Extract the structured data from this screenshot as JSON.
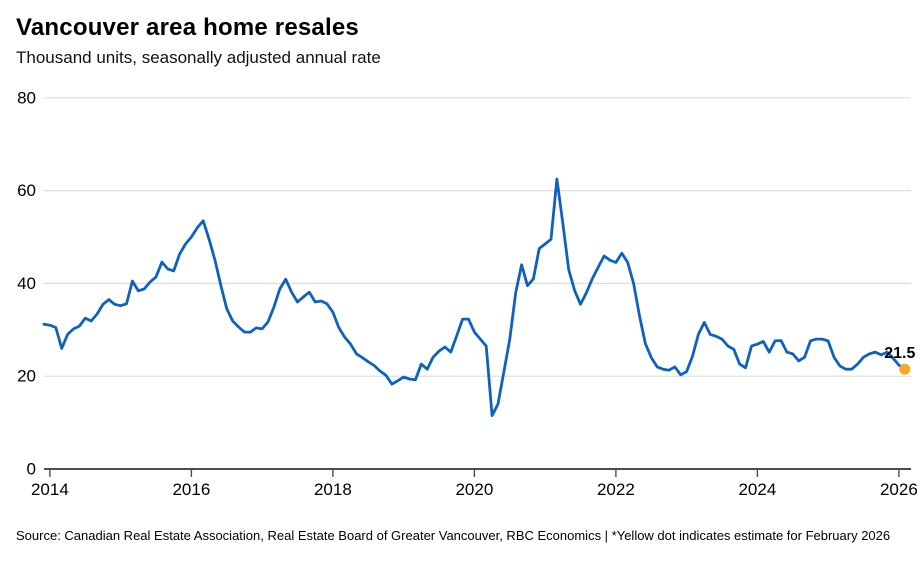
{
  "header": {
    "title": "Vancouver area home resales",
    "subtitle": "Thousand units, seasonally adjusted annual rate"
  },
  "footer": {
    "source": "Source: Canadian Real Estate Association, Real Estate Board of Greater Vancouver, RBC Economics | *Yellow dot indicates estimate for February 2026"
  },
  "colors": {
    "line": "#0d62bd",
    "dot": "#f7a824",
    "grid": "#dcdcdc",
    "axis": "#4d4d4d",
    "tick_text": "#000000"
  },
  "chart_data": {
    "type": "line",
    "title": "Vancouver area home resales",
    "subtitle": "Thousand units, seasonally adjusted annual rate",
    "xlabel": "",
    "ylabel": "Thousand units, seasonally adjusted annual rate",
    "ylim": [
      0,
      80
    ],
    "yticks": [
      0,
      20,
      40,
      60,
      80
    ],
    "xticks": [
      2014,
      2016,
      2018,
      2020,
      2022,
      2024,
      2026
    ],
    "grid": "horizontal",
    "legend": "none",
    "series": [
      {
        "name": "Vancouver area home resales (monthly, SAAR, thousands)",
        "start": "2013-12",
        "frequency": "monthly",
        "values": [
          31.2,
          31.0,
          30.5,
          26.0,
          29.0,
          30.2,
          30.8,
          32.5,
          31.9,
          33.4,
          35.5,
          36.5,
          35.5,
          35.2,
          35.6,
          40.5,
          38.4,
          38.8,
          40.3,
          41.4,
          44.6,
          43.1,
          42.7,
          46.3,
          48.5,
          50.0,
          52.0,
          53.5,
          49.5,
          45.0,
          39.5,
          34.5,
          31.9,
          30.6,
          29.5,
          29.5,
          30.4,
          30.2,
          31.7,
          34.9,
          38.8,
          40.9,
          38.1,
          36.0,
          37.1,
          38.1,
          36.0,
          36.2,
          35.6,
          33.8,
          30.5,
          28.4,
          26.9,
          24.8,
          24.0,
          23.1,
          22.3,
          21.1,
          20.2,
          18.3,
          19.0,
          19.8,
          19.4,
          19.2,
          22.6,
          21.5,
          24.1,
          25.4,
          26.3,
          25.2,
          28.7,
          32.3,
          32.3,
          29.5,
          28.0,
          26.5,
          11.5,
          14.0,
          21.0,
          28.0,
          38.0,
          44.0,
          39.5,
          41.0,
          47.5,
          48.5,
          49.5,
          62.5,
          53.0,
          43.0,
          38.5,
          35.5,
          38.0,
          41.0,
          43.5,
          45.9,
          45.0,
          44.5,
          46.5,
          44.5,
          40.0,
          33.0,
          27.0,
          24.0,
          22.0,
          21.5,
          21.3,
          22.0,
          20.3,
          21.0,
          24.3,
          29.0,
          31.6,
          29.0,
          28.6,
          28.0,
          26.5,
          25.8,
          22.6,
          21.8,
          26.5,
          26.9,
          27.5,
          25.2,
          27.6,
          27.7,
          25.2,
          24.8,
          23.3,
          24.1,
          27.6,
          28.0,
          28.0,
          27.6,
          24.1,
          22.2,
          21.5,
          21.5,
          22.6,
          24.1,
          24.8,
          25.2,
          24.6,
          25.2,
          23.9,
          22.4,
          21.5
        ]
      }
    ],
    "estimate_point": {
      "date": "2026-02",
      "value": 21.5,
      "label": "21.5",
      "note": "Yellow dot indicates estimate for February 2026"
    }
  }
}
